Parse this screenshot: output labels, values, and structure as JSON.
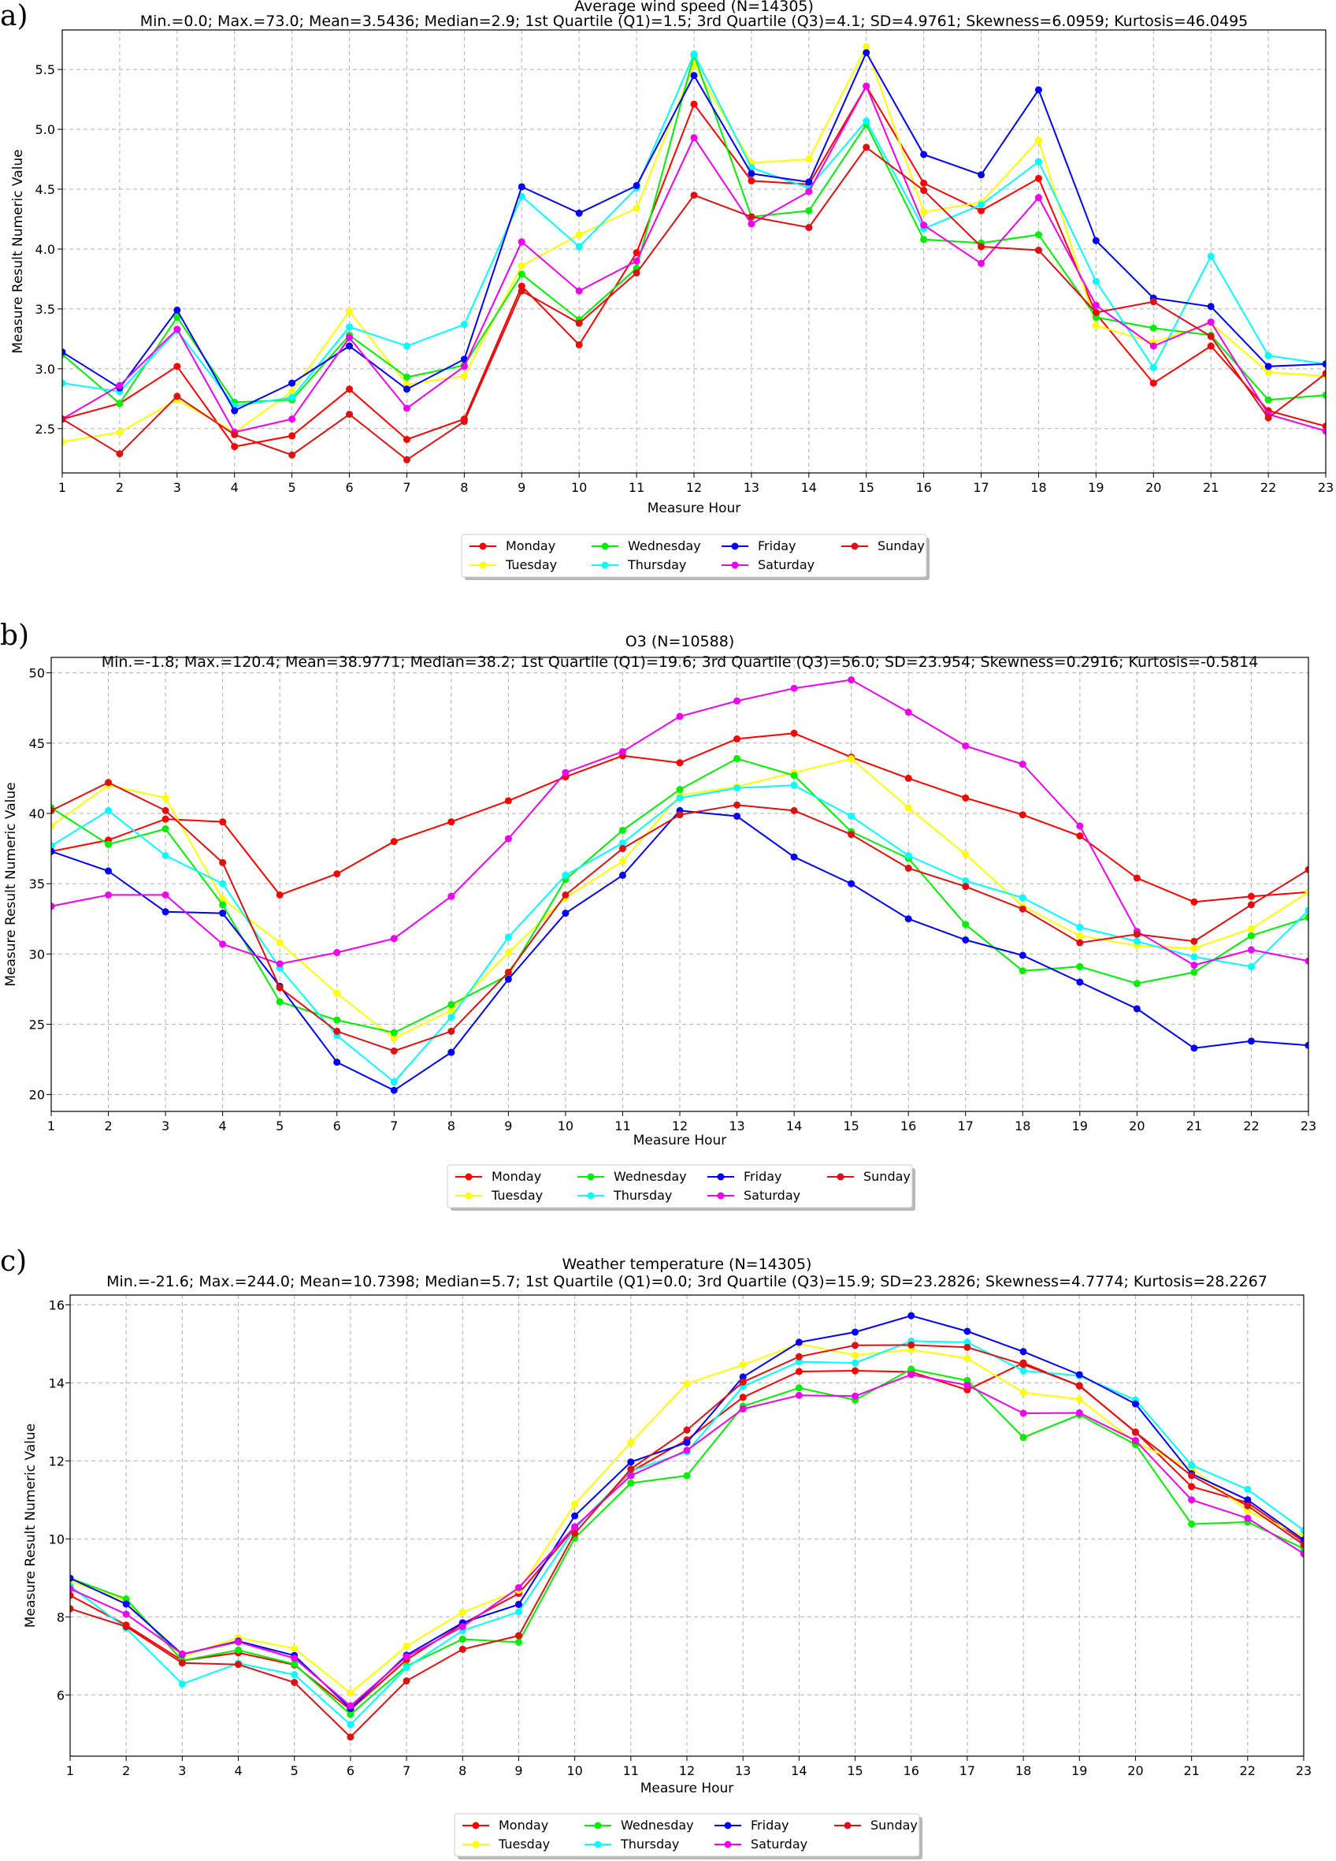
{
  "panels": [
    {
      "label": "a)",
      "chart_data": {
        "type": "line",
        "title": "Average wind speed (N=14305)",
        "subtitle": "Min.=0.0; Max.=73.0; Mean=3.5436; Median=2.9; 1st Quartile (Q1)=1.5; 3rd Quartile (Q3)=4.1; SD=4.9761; Skewness=6.0959; Kurtosis=46.0495",
        "xlabel": "Measure Hour",
        "ylabel": "Measure Result Numeric Value",
        "x": [
          1,
          2,
          3,
          4,
          5,
          6,
          7,
          8,
          9,
          10,
          11,
          12,
          13,
          14,
          15,
          16,
          17,
          18,
          19,
          20,
          21,
          22,
          23
        ],
        "xlim": [
          1,
          23
        ],
        "ylim": [
          2.13,
          5.83
        ],
        "yticks": [
          2.5,
          3.0,
          3.5,
          4.0,
          4.5,
          5.0,
          5.5
        ],
        "ytick_labels": [
          "2.5",
          "3.0",
          "3.5",
          "4.0",
          "4.5",
          "5.0",
          "5.5"
        ],
        "grid": true,
        "legend": "bottom-center",
        "series": [
          {
            "name": "Monday",
            "color": "#ff0000",
            "values": [
              2.58,
              2.71,
              3.02,
              2.35,
              2.44,
              2.83,
              2.41,
              2.58,
              3.69,
              3.2,
              3.97,
              5.21,
              4.57,
              4.54,
              5.36,
              4.55,
              4.32,
              4.59,
              3.46,
              2.88,
              3.19,
              2.65,
              2.52
            ]
          },
          {
            "name": "Tuesday",
            "color": "#ffff00",
            "values": [
              2.39,
              2.47,
              2.74,
              2.47,
              2.81,
              3.48,
              2.87,
              2.94,
              3.86,
              4.12,
              4.34,
              5.54,
              4.72,
              4.75,
              5.69,
              4.31,
              4.39,
              4.91,
              3.36,
              3.22,
              3.38,
              2.97,
              2.94
            ]
          },
          {
            "name": "Wednesday",
            "color": "#00ee00",
            "values": [
              3.12,
              2.71,
              3.43,
              2.72,
              2.74,
              3.28,
              2.93,
              3.03,
              3.79,
              3.41,
              3.84,
              5.62,
              4.27,
              4.32,
              5.04,
              4.08,
              4.05,
              4.12,
              3.43,
              3.34,
              3.28,
              2.74,
              2.78
            ]
          },
          {
            "name": "Thursday",
            "color": "#00ffff",
            "values": [
              2.88,
              2.81,
              3.32,
              2.69,
              2.76,
              3.35,
              3.19,
              3.37,
              4.44,
              4.02,
              4.51,
              5.63,
              4.68,
              4.51,
              5.07,
              4.17,
              4.37,
              4.73,
              3.73,
              3.01,
              3.94,
              3.11,
              3.04
            ]
          },
          {
            "name": "Friday",
            "color": "#0000ff",
            "values": [
              3.14,
              2.84,
              3.49,
              2.65,
              2.88,
              3.19,
              2.83,
              3.08,
              4.52,
              4.3,
              4.53,
              5.45,
              4.63,
              4.56,
              5.64,
              4.79,
              4.62,
              5.33,
              4.07,
              3.59,
              3.52,
              3.02,
              3.04
            ]
          },
          {
            "name": "Saturday",
            "color": "#ee00ee",
            "values": [
              2.58,
              2.86,
              3.33,
              2.47,
              2.58,
              3.26,
              2.67,
              3.02,
              4.06,
              3.65,
              3.9,
              4.93,
              4.21,
              4.48,
              5.36,
              4.2,
              3.88,
              4.43,
              3.53,
              3.19,
              3.39,
              2.62,
              2.48
            ]
          },
          {
            "name": "Sunday",
            "color": "#dd1111",
            "values": [
              2.58,
              2.29,
              2.77,
              2.45,
              2.28,
              2.62,
              2.24,
              2.56,
              3.65,
              3.38,
              3.8,
              4.45,
              4.27,
              4.18,
              4.85,
              4.49,
              4.02,
              3.99,
              3.47,
              3.56,
              3.27,
              2.59,
              2.96
            ]
          }
        ]
      }
    },
    {
      "label": "b)",
      "chart_data": {
        "type": "line",
        "title": "O3 (N=10588)",
        "subtitle": "Min.=-1.8; Max.=120.4; Mean=38.9771; Median=38.2; 1st Quartile (Q1)=19.6; 3rd Quartile (Q3)=56.0; SD=23.954; Skewness=0.2916; Kurtosis=-0.5814",
        "xlabel": "Measure Hour",
        "ylabel": "Measure Result Numeric Value",
        "x": [
          1,
          2,
          3,
          4,
          5,
          6,
          7,
          8,
          9,
          10,
          11,
          12,
          13,
          14,
          15,
          16,
          17,
          18,
          19,
          20,
          21,
          22,
          23
        ],
        "xlim": [
          1,
          23
        ],
        "ylim": [
          18.8,
          51.1
        ],
        "yticks": [
          20,
          25,
          30,
          35,
          40,
          45,
          50
        ],
        "ytick_labels": [
          "20",
          "25",
          "30",
          "35",
          "40",
          "45",
          "50"
        ],
        "grid": true,
        "legend": "bottom-center",
        "series": [
          {
            "name": "Monday",
            "color": "#ff0000",
            "values": [
              37.3,
              38.1,
              39.6,
              39.4,
              34.2,
              35.7,
              38.0,
              39.4,
              40.9,
              42.6,
              44.1,
              43.6,
              45.3,
              45.7,
              44.0,
              42.5,
              41.1,
              39.9,
              38.4,
              35.4,
              33.7,
              34.1,
              34.4
            ]
          },
          {
            "name": "Tuesday",
            "color": "#ffff00",
            "values": [
              39.1,
              42.0,
              41.1,
              33.9,
              30.8,
              27.2,
              24.0,
              26.0,
              30.1,
              34.0,
              36.6,
              41.3,
              41.9,
              42.9,
              43.9,
              40.4,
              37.1,
              33.4,
              31.3,
              30.6,
              30.4,
              31.8,
              34.4
            ]
          },
          {
            "name": "Wednesday",
            "color": "#00ee00",
            "values": [
              40.4,
              37.8,
              38.9,
              33.5,
              26.6,
              25.3,
              24.4,
              26.4,
              28.5,
              35.3,
              38.8,
              41.7,
              43.9,
              42.7,
              38.7,
              36.8,
              32.1,
              28.8,
              29.1,
              27.9,
              28.7,
              31.3,
              32.6
            ]
          },
          {
            "name": "Thursday",
            "color": "#00ffff",
            "values": [
              37.7,
              40.2,
              37.0,
              35.0,
              29.0,
              24.2,
              20.9,
              25.5,
              31.2,
              35.6,
              37.9,
              41.1,
              41.8,
              42.0,
              39.8,
              37.0,
              35.2,
              34.0,
              31.9,
              30.9,
              29.8,
              29.1,
              33.1
            ]
          },
          {
            "name": "Friday",
            "color": "#0000ff",
            "values": [
              37.3,
              35.9,
              33.0,
              32.9,
              27.7,
              22.3,
              20.3,
              23.0,
              28.2,
              32.9,
              35.6,
              40.2,
              39.8,
              36.9,
              35.0,
              32.5,
              31.0,
              29.9,
              28.0,
              26.1,
              23.3,
              23.8,
              23.5
            ]
          },
          {
            "name": "Saturday",
            "color": "#ee00ee",
            "values": [
              33.4,
              34.2,
              34.2,
              30.7,
              29.3,
              30.1,
              31.1,
              34.1,
              38.2,
              42.9,
              44.4,
              46.9,
              48.0,
              48.9,
              49.5,
              47.2,
              44.8,
              43.5,
              39.1,
              31.6,
              29.2,
              30.3,
              29.5
            ]
          },
          {
            "name": "Sunday",
            "color": "#dd1111",
            "values": [
              40.2,
              42.2,
              40.2,
              36.5,
              27.6,
              24.5,
              23.1,
              24.5,
              28.7,
              34.2,
              37.5,
              39.9,
              40.6,
              40.2,
              38.5,
              36.1,
              34.8,
              33.2,
              30.8,
              31.4,
              30.9,
              33.5,
              36.0
            ]
          }
        ]
      }
    },
    {
      "label": "c)",
      "chart_data": {
        "type": "line",
        "title": "Weather temperature (N=14305)",
        "subtitle": "Min.=-21.6; Max.=244.0; Mean=10.7398; Median=5.7; 1st Quartile (Q1)=0.0; 3rd Quartile (Q3)=15.9; SD=23.2826; Skewness=4.7774; Kurtosis=28.2267",
        "xlabel": "Measure Hour",
        "ylabel": "Measure Result Numeric Value",
        "x": [
          1,
          2,
          3,
          4,
          5,
          6,
          7,
          8,
          9,
          10,
          11,
          12,
          13,
          14,
          15,
          16,
          17,
          18,
          19,
          20,
          21,
          22,
          23
        ],
        "xlim": [
          1,
          23
        ],
        "ylim": [
          4.43,
          16.25
        ],
        "yticks": [
          6,
          8,
          10,
          12,
          14,
          16
        ],
        "ytick_labels": [
          "6",
          "8",
          "10",
          "12",
          "14",
          "16"
        ],
        "grid": true,
        "legend": "bottom-center",
        "series": [
          {
            "name": "Monday",
            "color": "#ff0000",
            "values": [
              8.55,
              7.79,
              6.88,
              7.08,
              6.77,
              5.62,
              6.9,
              7.82,
              8.6,
              10.28,
              11.72,
              12.54,
              13.63,
              14.29,
              14.31,
              14.28,
              13.82,
              14.51,
              13.92,
              12.74,
              11.34,
              10.93,
              9.92
            ]
          },
          {
            "name": "Tuesday",
            "color": "#ffff00",
            "values": [
              8.92,
              8.41,
              6.98,
              7.47,
              7.19,
              6.05,
              7.25,
              8.12,
              8.68,
              10.89,
              12.47,
              13.98,
              14.46,
              15.0,
              14.71,
              14.85,
              14.63,
              13.75,
              13.58,
              12.47,
              11.81,
              10.72,
              10.06
            ]
          },
          {
            "name": "Wednesday",
            "color": "#00ee00",
            "values": [
              8.99,
              8.46,
              6.88,
              7.15,
              6.79,
              5.5,
              6.74,
              7.43,
              7.35,
              10.02,
              11.43,
              11.62,
              13.4,
              13.87,
              13.56,
              14.35,
              14.06,
              12.6,
              13.18,
              12.42,
              10.38,
              10.43,
              9.75
            ]
          },
          {
            "name": "Thursday",
            "color": "#00ffff",
            "values": [
              8.79,
              7.71,
              6.28,
              6.81,
              6.52,
              5.24,
              6.7,
              7.65,
              8.13,
              10.26,
              11.74,
              12.23,
              13.91,
              14.54,
              14.51,
              15.07,
              15.04,
              14.31,
              14.18,
              13.56,
              11.89,
              11.27,
              10.22
            ]
          },
          {
            "name": "Friday",
            "color": "#0000ff",
            "values": [
              8.99,
              8.33,
              7.04,
              7.38,
              7.01,
              5.65,
              7.02,
              7.85,
              8.32,
              10.59,
              11.97,
              12.47,
              14.15,
              15.04,
              15.3,
              15.72,
              15.32,
              14.8,
              14.21,
              13.46,
              11.67,
              11.0,
              9.97
            ]
          },
          {
            "name": "Saturday",
            "color": "#ee00ee",
            "values": [
              8.72,
              8.07,
              7.05,
              7.36,
              6.94,
              5.72,
              6.98,
              7.75,
              8.75,
              10.31,
              11.62,
              12.27,
              13.33,
              13.68,
              13.66,
              14.21,
              13.94,
              13.22,
              13.23,
              12.52,
              11.0,
              10.53,
              9.62
            ]
          },
          {
            "name": "Sunday",
            "color": "#dd1111",
            "values": [
              8.21,
              7.75,
              6.82,
              6.78,
              6.32,
              4.92,
              6.36,
              7.17,
              7.52,
              10.14,
              11.79,
              12.79,
              14.02,
              14.67,
              14.96,
              14.97,
              14.91,
              14.47,
              13.93,
              12.73,
              11.62,
              10.85,
              9.85
            ]
          }
        ]
      }
    }
  ]
}
